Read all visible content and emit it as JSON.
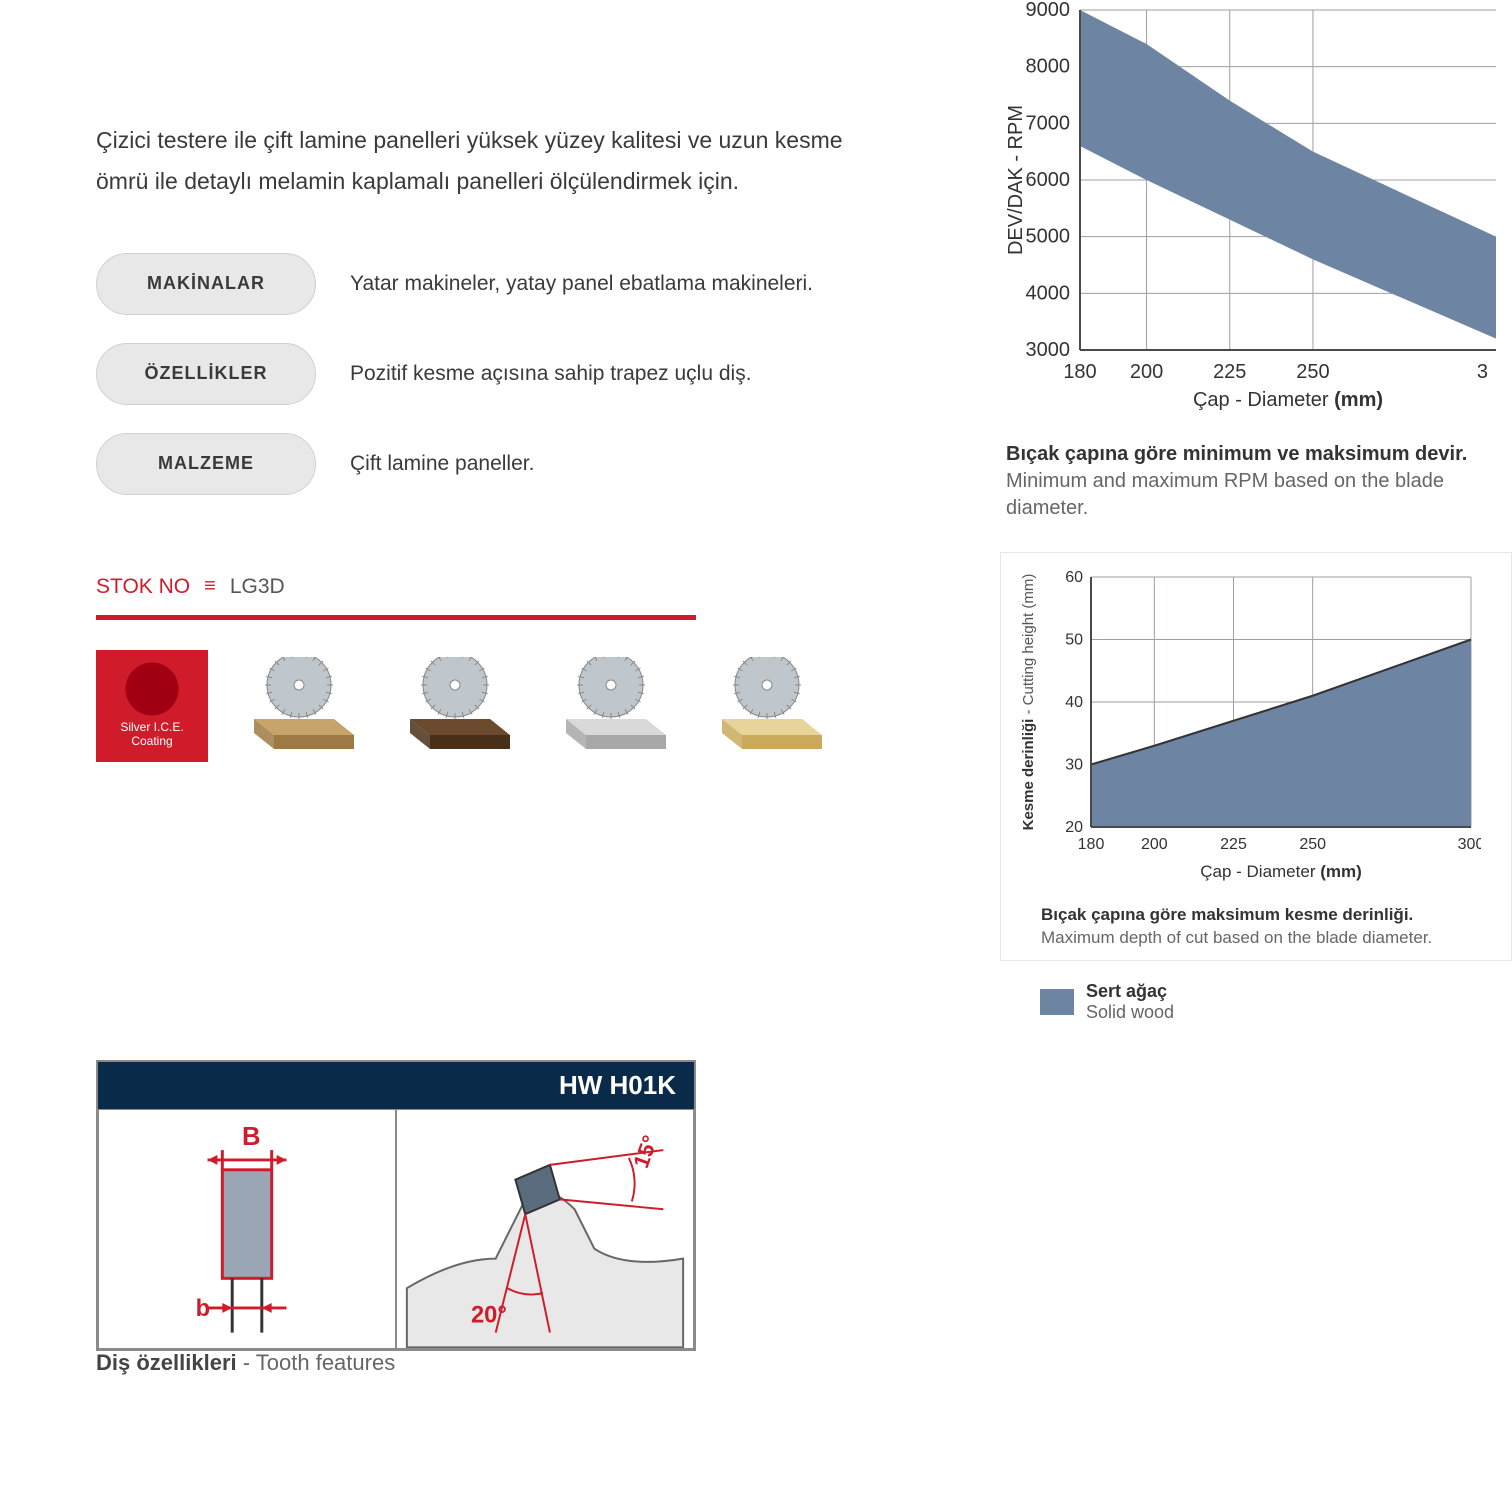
{
  "intro": "Çizici testere ile çift lamine panelleri yüksek yüzey kalitesi ve uzun kesme ömrü ile detaylı melamin kaplamalı panelleri ölçülendirmek için.",
  "specs": {
    "machines": {
      "label": "MAKİNALAR",
      "text": "Yatar makineler, yatay panel ebatlama makineleri."
    },
    "features": {
      "label": "ÖZELLİKLER",
      "text": "Pozitif kesme açısına sahip trapez uçlu diş."
    },
    "material": {
      "label": "MALZEME",
      "text": "Çift lamine paneller."
    }
  },
  "stok": {
    "label": "STOK NO",
    "value": "LG3D",
    "label_color": "#d01c2a",
    "bar_color": "#d01c2a"
  },
  "ice_badge": {
    "seal_text": "I.C.E.",
    "line1": "Silver I.C.E.",
    "line2": "Coating",
    "bg": "#d01c2a"
  },
  "materials_row": {
    "items": [
      {
        "slab_top": "#c7a46a",
        "slab_side": "#9d7a43"
      },
      {
        "slab_top": "#6b4a2e",
        "slab_side": "#4a2f18"
      },
      {
        "slab_top": "#d9d9d9",
        "slab_side": "#a8a8a8"
      },
      {
        "slab_top": "#e8d49a",
        "slab_side": "#caa95a"
      }
    ],
    "blade_color": "#bfc6cc"
  },
  "hw_panel": {
    "title": "HW  H01K",
    "header_bg": "#0a2a4a",
    "left": {
      "B_label": "B",
      "b_label": "b",
      "accent": "#d01c2a",
      "tooth_fill": "#9aa6b3"
    },
    "right": {
      "angle1": "15°",
      "angle2": "20°",
      "accent": "#d01c2a",
      "tooth_fill": "#5a6b7d"
    },
    "caption_bold": "Diş özellikleri",
    "caption_rest": " - Tooth features"
  },
  "rpm_chart": {
    "type": "area-band",
    "x_ticks": [
      180,
      200,
      225,
      250
    ],
    "x_label": "Çap - Diameter (mm)",
    "y_ticks": [
      3000,
      4000,
      5000,
      6000,
      7000,
      8000,
      9000
    ],
    "y_label": "DEV/DAK - RPM",
    "band_color": "#6d85a3",
    "grid_color": "#9aa0a6",
    "axis_color": "#4a4a4a",
    "upper": [
      [
        180,
        9000
      ],
      [
        200,
        8400
      ],
      [
        225,
        7400
      ],
      [
        250,
        6500
      ],
      [
        305,
        5000
      ]
    ],
    "lower": [
      [
        180,
        6600
      ],
      [
        200,
        6000
      ],
      [
        225,
        5300
      ],
      [
        250,
        4600
      ],
      [
        305,
        3200
      ]
    ],
    "caption_bold": "Bıçak çapına göre minimum ve maksimum devir.",
    "caption_rest": "Minimum and maximum RPM based on the blade diameter."
  },
  "depth_chart": {
    "type": "area",
    "x_ticks": [
      180,
      200,
      225,
      250,
      300
    ],
    "x_label": "Çap - Diameter (mm)",
    "y_ticks": [
      20,
      30,
      40,
      50,
      60
    ],
    "y_label_bold": "Kesme derinliği",
    "y_label_rest": " - Cutting height (mm)",
    "fill_color": "#6d85a3",
    "grid_color": "#9aa0a6",
    "axis_color": "#4a4a4a",
    "line": [
      [
        180,
        30
      ],
      [
        200,
        33
      ],
      [
        225,
        37
      ],
      [
        250,
        41
      ],
      [
        300,
        50
      ]
    ],
    "caption_bold": "Bıçak çapına göre maksimum kesme derinliği.",
    "caption_rest": "Maximum depth of cut based on the blade diameter."
  },
  "legend": {
    "swatch": "#6d85a3",
    "bold": "Sert ağaç",
    "rest": "Solid wood"
  }
}
